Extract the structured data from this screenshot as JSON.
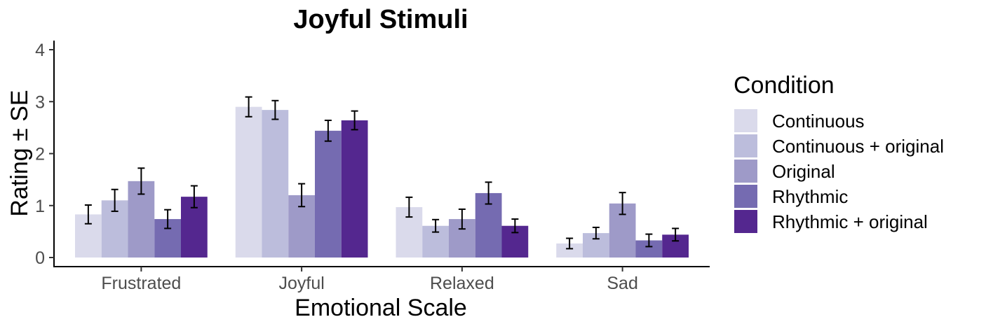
{
  "chart_data": {
    "type": "bar",
    "title": "Joyful Stimuli",
    "xlabel": "Emotional Scale",
    "ylabel": "Rating ± SE",
    "ylim": [
      0,
      4
    ],
    "yticks": [
      0,
      1,
      2,
      3,
      4
    ],
    "grid": false,
    "legend_position": "right",
    "legend_title": "Condition",
    "categories": [
      "Frustrated",
      "Joyful",
      "Relaxed",
      "Sad"
    ],
    "series": [
      {
        "name": "Continuous",
        "color": "#dadaeb",
        "values": [
          0.83,
          2.9,
          0.97,
          0.27
        ],
        "se": [
          0.18,
          0.19,
          0.19,
          0.1
        ]
      },
      {
        "name": "Continuous + original",
        "color": "#bcbddc",
        "values": [
          1.1,
          2.84,
          0.61,
          0.47
        ],
        "se": [
          0.21,
          0.18,
          0.12,
          0.11
        ]
      },
      {
        "name": "Original",
        "color": "#9e9ac8",
        "values": [
          1.47,
          1.2,
          0.74,
          1.04
        ],
        "se": [
          0.25,
          0.22,
          0.19,
          0.21
        ]
      },
      {
        "name": "Rhythmic",
        "color": "#756bb1",
        "values": [
          0.74,
          2.44,
          1.24,
          0.33
        ],
        "se": [
          0.18,
          0.2,
          0.21,
          0.12
        ]
      },
      {
        "name": "Rhythmic + original",
        "color": "#54278f",
        "values": [
          1.17,
          2.64,
          0.61,
          0.44
        ],
        "se": [
          0.21,
          0.18,
          0.13,
          0.12
        ]
      }
    ]
  }
}
